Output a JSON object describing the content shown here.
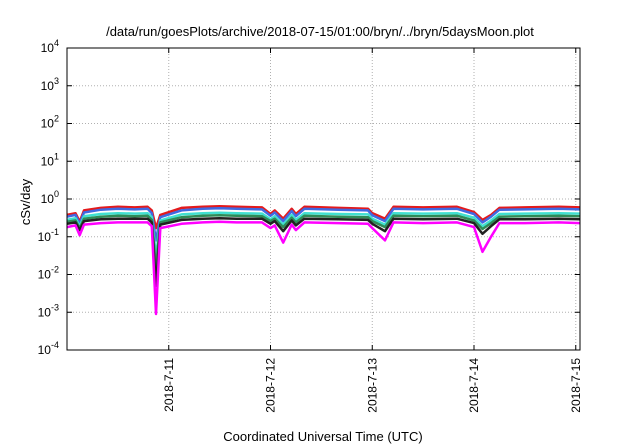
{
  "chart_data": {
    "type": "line",
    "title": "/data/run/goesPlots/archive/2018-07-15/01:00/bryn/../bryn/5daysMoon.plot",
    "xlabel": "Coordinated Universal Time (UTC)",
    "ylabel": "cSv/day",
    "yscale": "log",
    "ylim": [
      0.0001,
      10000
    ],
    "xlim": [
      "2018-07-10 00:00",
      "2018-07-15 01:00"
    ],
    "grid": true,
    "yticks": [
      {
        "base": "10",
        "exp": "-4",
        "value": 0.0001
      },
      {
        "base": "10",
        "exp": "-3",
        "value": 0.001
      },
      {
        "base": "10",
        "exp": "-2",
        "value": 0.01
      },
      {
        "base": "10",
        "exp": "-1",
        "value": 0.1
      },
      {
        "base": "10",
        "exp": "0",
        "value": 1
      },
      {
        "base": "10",
        "exp": "1",
        "value": 10
      },
      {
        "base": "10",
        "exp": "2",
        "value": 100
      },
      {
        "base": "10",
        "exp": "3",
        "value": 1000
      },
      {
        "base": "10",
        "exp": "4",
        "value": 10000
      }
    ],
    "xticks": [
      {
        "label": "2018-7-11",
        "value": "2018-07-11 00:00"
      },
      {
        "label": "2018-7-12",
        "value": "2018-07-12 00:00"
      },
      {
        "label": "2018-7-13",
        "value": "2018-07-13 00:00"
      },
      {
        "label": "2018-7-14",
        "value": "2018-07-14 00:00"
      },
      {
        "label": "2018-7-15",
        "value": "2018-07-15 00:00"
      }
    ],
    "series": [
      {
        "color": "#e41a1c",
        "values": [
          [
            "2018-07-10 00:00",
            0.38
          ],
          [
            "2018-07-10 02:00",
            0.42
          ],
          [
            "2018-07-10 03:00",
            0.25
          ],
          [
            "2018-07-10 04:00",
            0.5
          ],
          [
            "2018-07-10 08:00",
            0.58
          ],
          [
            "2018-07-10 12:00",
            0.62
          ],
          [
            "2018-07-10 16:00",
            0.6
          ],
          [
            "2018-07-10 19:00",
            0.62
          ],
          [
            "2018-07-10 20:00",
            0.5
          ],
          [
            "2018-07-10 21:00",
            0.17
          ],
          [
            "2018-07-10 22:00",
            0.38
          ],
          [
            "2018-07-11 03:00",
            0.58
          ],
          [
            "2018-07-11 08:00",
            0.62
          ],
          [
            "2018-07-11 12:00",
            0.64
          ],
          [
            "2018-07-11 16:00",
            0.62
          ],
          [
            "2018-07-11 22:00",
            0.6
          ],
          [
            "2018-07-12 00:00",
            0.4
          ],
          [
            "2018-07-12 01:00",
            0.5
          ],
          [
            "2018-07-12 03:00",
            0.3
          ],
          [
            "2018-07-12 05:00",
            0.55
          ],
          [
            "2018-07-12 06:00",
            0.4
          ],
          [
            "2018-07-12 08:00",
            0.62
          ],
          [
            "2018-07-12 16:00",
            0.58
          ],
          [
            "2018-07-12 23:00",
            0.55
          ],
          [
            "2018-07-13 00:00",
            0.42
          ],
          [
            "2018-07-13 03:00",
            0.3
          ],
          [
            "2018-07-13 05:00",
            0.62
          ],
          [
            "2018-07-13 12:00",
            0.6
          ],
          [
            "2018-07-13 20:00",
            0.62
          ],
          [
            "2018-07-14 00:00",
            0.45
          ],
          [
            "2018-07-14 02:00",
            0.28
          ],
          [
            "2018-07-14 04:00",
            0.38
          ],
          [
            "2018-07-14 06:00",
            0.58
          ],
          [
            "2018-07-14 12:00",
            0.6
          ],
          [
            "2018-07-14 20:00",
            0.62
          ],
          [
            "2018-07-15 01:00",
            0.6
          ]
        ]
      },
      {
        "color": "#4169e1",
        "values": [
          [
            "2018-07-10 00:00",
            0.34
          ],
          [
            "2018-07-10 02:00",
            0.38
          ],
          [
            "2018-07-10 03:00",
            0.22
          ],
          [
            "2018-07-10 04:00",
            0.44
          ],
          [
            "2018-07-10 08:00",
            0.52
          ],
          [
            "2018-07-10 12:00",
            0.55
          ],
          [
            "2018-07-10 16:00",
            0.53
          ],
          [
            "2018-07-10 19:00",
            0.55
          ],
          [
            "2018-07-10 20:00",
            0.42
          ],
          [
            "2018-07-10 21:00",
            0.08
          ],
          [
            "2018-07-10 22:00",
            0.33
          ],
          [
            "2018-07-11 03:00",
            0.5
          ],
          [
            "2018-07-11 08:00",
            0.55
          ],
          [
            "2018-07-11 12:00",
            0.57
          ],
          [
            "2018-07-11 16:00",
            0.55
          ],
          [
            "2018-07-11 22:00",
            0.53
          ],
          [
            "2018-07-12 00:00",
            0.36
          ],
          [
            "2018-07-12 01:00",
            0.44
          ],
          [
            "2018-07-12 03:00",
            0.26
          ],
          [
            "2018-07-12 05:00",
            0.48
          ],
          [
            "2018-07-12 06:00",
            0.35
          ],
          [
            "2018-07-12 08:00",
            0.55
          ],
          [
            "2018-07-12 16:00",
            0.52
          ],
          [
            "2018-07-12 23:00",
            0.5
          ],
          [
            "2018-07-13 00:00",
            0.37
          ],
          [
            "2018-07-13 03:00",
            0.26
          ],
          [
            "2018-07-13 05:00",
            0.55
          ],
          [
            "2018-07-13 12:00",
            0.53
          ],
          [
            "2018-07-13 20:00",
            0.55
          ],
          [
            "2018-07-14 00:00",
            0.4
          ],
          [
            "2018-07-14 02:00",
            0.24
          ],
          [
            "2018-07-14 04:00",
            0.34
          ],
          [
            "2018-07-14 06:00",
            0.52
          ],
          [
            "2018-07-14 12:00",
            0.53
          ],
          [
            "2018-07-14 20:00",
            0.55
          ],
          [
            "2018-07-15 01:00",
            0.53
          ]
        ]
      },
      {
        "color": "#40e0d0",
        "values": [
          [
            "2018-07-10 00:00",
            0.28
          ],
          [
            "2018-07-10 02:00",
            0.31
          ],
          [
            "2018-07-10 03:00",
            0.19
          ],
          [
            "2018-07-10 04:00",
            0.35
          ],
          [
            "2018-07-10 08:00",
            0.4
          ],
          [
            "2018-07-10 12:00",
            0.42
          ],
          [
            "2018-07-10 16:00",
            0.41
          ],
          [
            "2018-07-10 19:00",
            0.42
          ],
          [
            "2018-07-10 20:00",
            0.33
          ],
          [
            "2018-07-10 21:00",
            0.03
          ],
          [
            "2018-07-10 22:00",
            0.27
          ],
          [
            "2018-07-11 03:00",
            0.39
          ],
          [
            "2018-07-11 08:00",
            0.42
          ],
          [
            "2018-07-11 12:00",
            0.43
          ],
          [
            "2018-07-11 16:00",
            0.42
          ],
          [
            "2018-07-11 22:00",
            0.41
          ],
          [
            "2018-07-12 00:00",
            0.29
          ],
          [
            "2018-07-12 01:00",
            0.35
          ],
          [
            "2018-07-12 03:00",
            0.21
          ],
          [
            "2018-07-12 05:00",
            0.38
          ],
          [
            "2018-07-12 06:00",
            0.28
          ],
          [
            "2018-07-12 08:00",
            0.42
          ],
          [
            "2018-07-12 16:00",
            0.4
          ],
          [
            "2018-07-12 23:00",
            0.39
          ],
          [
            "2018-07-13 00:00",
            0.3
          ],
          [
            "2018-07-13 03:00",
            0.21
          ],
          [
            "2018-07-13 05:00",
            0.42
          ],
          [
            "2018-07-13 12:00",
            0.41
          ],
          [
            "2018-07-13 20:00",
            0.42
          ],
          [
            "2018-07-14 00:00",
            0.32
          ],
          [
            "2018-07-14 02:00",
            0.19
          ],
          [
            "2018-07-14 04:00",
            0.27
          ],
          [
            "2018-07-14 06:00",
            0.4
          ],
          [
            "2018-07-14 12:00",
            0.41
          ],
          [
            "2018-07-14 20:00",
            0.42
          ],
          [
            "2018-07-15 01:00",
            0.41
          ]
        ]
      },
      {
        "color": "#2e8b57",
        "values": [
          [
            "2018-07-10 00:00",
            0.25
          ],
          [
            "2018-07-10 02:00",
            0.27
          ],
          [
            "2018-07-10 03:00",
            0.17
          ],
          [
            "2018-07-10 04:00",
            0.3
          ],
          [
            "2018-07-10 08:00",
            0.34
          ],
          [
            "2018-07-10 12:00",
            0.36
          ],
          [
            "2018-07-10 16:00",
            0.35
          ],
          [
            "2018-07-10 19:00",
            0.36
          ],
          [
            "2018-07-10 20:00",
            0.28
          ],
          [
            "2018-07-10 21:00",
            0.015
          ],
          [
            "2018-07-10 22:00",
            0.24
          ],
          [
            "2018-07-11 03:00",
            0.33
          ],
          [
            "2018-07-11 08:00",
            0.36
          ],
          [
            "2018-07-11 12:00",
            0.37
          ],
          [
            "2018-07-11 16:00",
            0.36
          ],
          [
            "2018-07-11 22:00",
            0.35
          ],
          [
            "2018-07-12 00:00",
            0.26
          ],
          [
            "2018-07-12 01:00",
            0.3
          ],
          [
            "2018-07-12 03:00",
            0.18
          ],
          [
            "2018-07-12 05:00",
            0.32
          ],
          [
            "2018-07-12 06:00",
            0.24
          ],
          [
            "2018-07-12 08:00",
            0.36
          ],
          [
            "2018-07-12 16:00",
            0.34
          ],
          [
            "2018-07-12 23:00",
            0.33
          ],
          [
            "2018-07-13 00:00",
            0.26
          ],
          [
            "2018-07-13 03:00",
            0.18
          ],
          [
            "2018-07-13 05:00",
            0.36
          ],
          [
            "2018-07-13 12:00",
            0.35
          ],
          [
            "2018-07-13 20:00",
            0.36
          ],
          [
            "2018-07-14 00:00",
            0.27
          ],
          [
            "2018-07-14 02:00",
            0.16
          ],
          [
            "2018-07-14 04:00",
            0.23
          ],
          [
            "2018-07-14 06:00",
            0.34
          ],
          [
            "2018-07-14 12:00",
            0.35
          ],
          [
            "2018-07-14 20:00",
            0.36
          ],
          [
            "2018-07-15 01:00",
            0.35
          ]
        ]
      },
      {
        "color": "#222222",
        "values": [
          [
            "2018-07-10 00:00",
            0.22
          ],
          [
            "2018-07-10 02:00",
            0.24
          ],
          [
            "2018-07-10 03:00",
            0.15
          ],
          [
            "2018-07-10 04:00",
            0.26
          ],
          [
            "2018-07-10 08:00",
            0.29
          ],
          [
            "2018-07-10 12:00",
            0.3
          ],
          [
            "2018-07-10 16:00",
            0.3
          ],
          [
            "2018-07-10 19:00",
            0.3
          ],
          [
            "2018-07-10 20:00",
            0.24
          ],
          [
            "2018-07-10 21:00",
            0.005
          ],
          [
            "2018-07-10 22:00",
            0.21
          ],
          [
            "2018-07-11 03:00",
            0.28
          ],
          [
            "2018-07-11 08:00",
            0.3
          ],
          [
            "2018-07-11 12:00",
            0.31
          ],
          [
            "2018-07-11 16:00",
            0.3
          ],
          [
            "2018-07-11 22:00",
            0.3
          ],
          [
            "2018-07-12 00:00",
            0.22
          ],
          [
            "2018-07-12 01:00",
            0.26
          ],
          [
            "2018-07-12 03:00",
            0.14
          ],
          [
            "2018-07-12 05:00",
            0.27
          ],
          [
            "2018-07-12 06:00",
            0.2
          ],
          [
            "2018-07-12 08:00",
            0.3
          ],
          [
            "2018-07-12 16:00",
            0.29
          ],
          [
            "2018-07-12 23:00",
            0.28
          ],
          [
            "2018-07-13 00:00",
            0.22
          ],
          [
            "2018-07-13 03:00",
            0.14
          ],
          [
            "2018-07-13 05:00",
            0.3
          ],
          [
            "2018-07-13 12:00",
            0.29
          ],
          [
            "2018-07-13 20:00",
            0.3
          ],
          [
            "2018-07-14 00:00",
            0.23
          ],
          [
            "2018-07-14 02:00",
            0.12
          ],
          [
            "2018-07-14 04:00",
            0.19
          ],
          [
            "2018-07-14 06:00",
            0.29
          ],
          [
            "2018-07-14 12:00",
            0.29
          ],
          [
            "2018-07-14 20:00",
            0.3
          ],
          [
            "2018-07-15 01:00",
            0.29
          ]
        ]
      },
      {
        "color": "#ff00ff",
        "values": [
          [
            "2018-07-10 00:00",
            0.18
          ],
          [
            "2018-07-10 02:00",
            0.2
          ],
          [
            "2018-07-10 03:00",
            0.11
          ],
          [
            "2018-07-10 04:00",
            0.21
          ],
          [
            "2018-07-10 08:00",
            0.23
          ],
          [
            "2018-07-10 12:00",
            0.24
          ],
          [
            "2018-07-10 16:00",
            0.24
          ],
          [
            "2018-07-10 19:00",
            0.24
          ],
          [
            "2018-07-10 20:00",
            0.19
          ],
          [
            "2018-07-10 21:00",
            0.0009
          ],
          [
            "2018-07-10 22:00",
            0.17
          ],
          [
            "2018-07-11 03:00",
            0.22
          ],
          [
            "2018-07-11 08:00",
            0.24
          ],
          [
            "2018-07-11 12:00",
            0.25
          ],
          [
            "2018-07-11 16:00",
            0.24
          ],
          [
            "2018-07-11 22:00",
            0.24
          ],
          [
            "2018-07-12 00:00",
            0.17
          ],
          [
            "2018-07-12 01:00",
            0.2
          ],
          [
            "2018-07-12 03:00",
            0.07
          ],
          [
            "2018-07-12 05:00",
            0.21
          ],
          [
            "2018-07-12 06:00",
            0.15
          ],
          [
            "2018-07-12 08:00",
            0.24
          ],
          [
            "2018-07-12 16:00",
            0.23
          ],
          [
            "2018-07-12 23:00",
            0.22
          ],
          [
            "2018-07-13 00:00",
            0.17
          ],
          [
            "2018-07-13 03:00",
            0.08
          ],
          [
            "2018-07-13 05:00",
            0.24
          ],
          [
            "2018-07-13 12:00",
            0.23
          ],
          [
            "2018-07-13 20:00",
            0.24
          ],
          [
            "2018-07-14 00:00",
            0.18
          ],
          [
            "2018-07-14 02:00",
            0.04
          ],
          [
            "2018-07-14 04:00",
            0.1
          ],
          [
            "2018-07-14 06:00",
            0.23
          ],
          [
            "2018-07-14 12:00",
            0.23
          ],
          [
            "2018-07-14 20:00",
            0.24
          ],
          [
            "2018-07-15 01:00",
            0.23
          ]
        ]
      }
    ]
  }
}
